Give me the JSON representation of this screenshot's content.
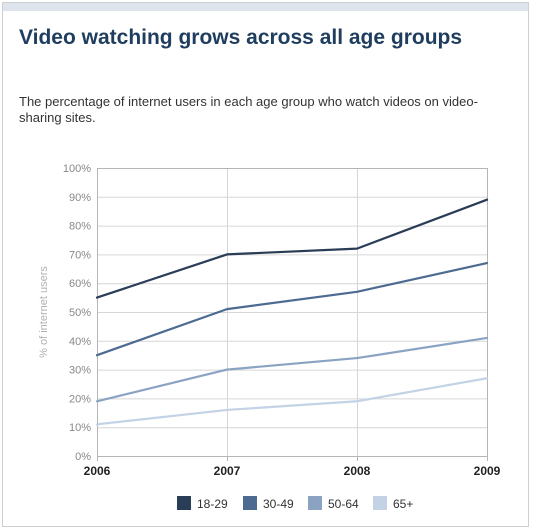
{
  "title": "Video watching grows across all age groups",
  "subtitle": "The percentage of internet users in each age group who watch videos on video-sharing sites.",
  "chart_data": {
    "type": "line",
    "title": "Video watching grows across all age groups",
    "subtitle": "The percentage of internet users in each age group who watch videos on video-sharing sites.",
    "ylabel": "% of internet users",
    "xlabel": "",
    "x": [
      "2006",
      "2007",
      "2008",
      "2009"
    ],
    "ylim": [
      0,
      100
    ],
    "yticks": [
      0,
      10,
      20,
      30,
      40,
      50,
      60,
      70,
      80,
      90,
      100
    ],
    "ytick_labels": [
      "0%",
      "10%",
      "20%",
      "30%",
      "40%",
      "50%",
      "60%",
      "70%",
      "80%",
      "90%",
      "100%"
    ],
    "grid": true,
    "legend_position": "bottom",
    "series": [
      {
        "name": "18-29",
        "color": "#2a3d57",
        "values": [
          55,
          70,
          72,
          89
        ]
      },
      {
        "name": "30-49",
        "color": "#4d6b91",
        "values": [
          35,
          51,
          57,
          67
        ]
      },
      {
        "name": "50-64",
        "color": "#8aa3c2",
        "values": [
          19,
          30,
          34,
          41
        ]
      },
      {
        "name": "65+",
        "color": "#c3d2e5",
        "values": [
          11,
          16,
          19,
          27
        ]
      }
    ]
  }
}
